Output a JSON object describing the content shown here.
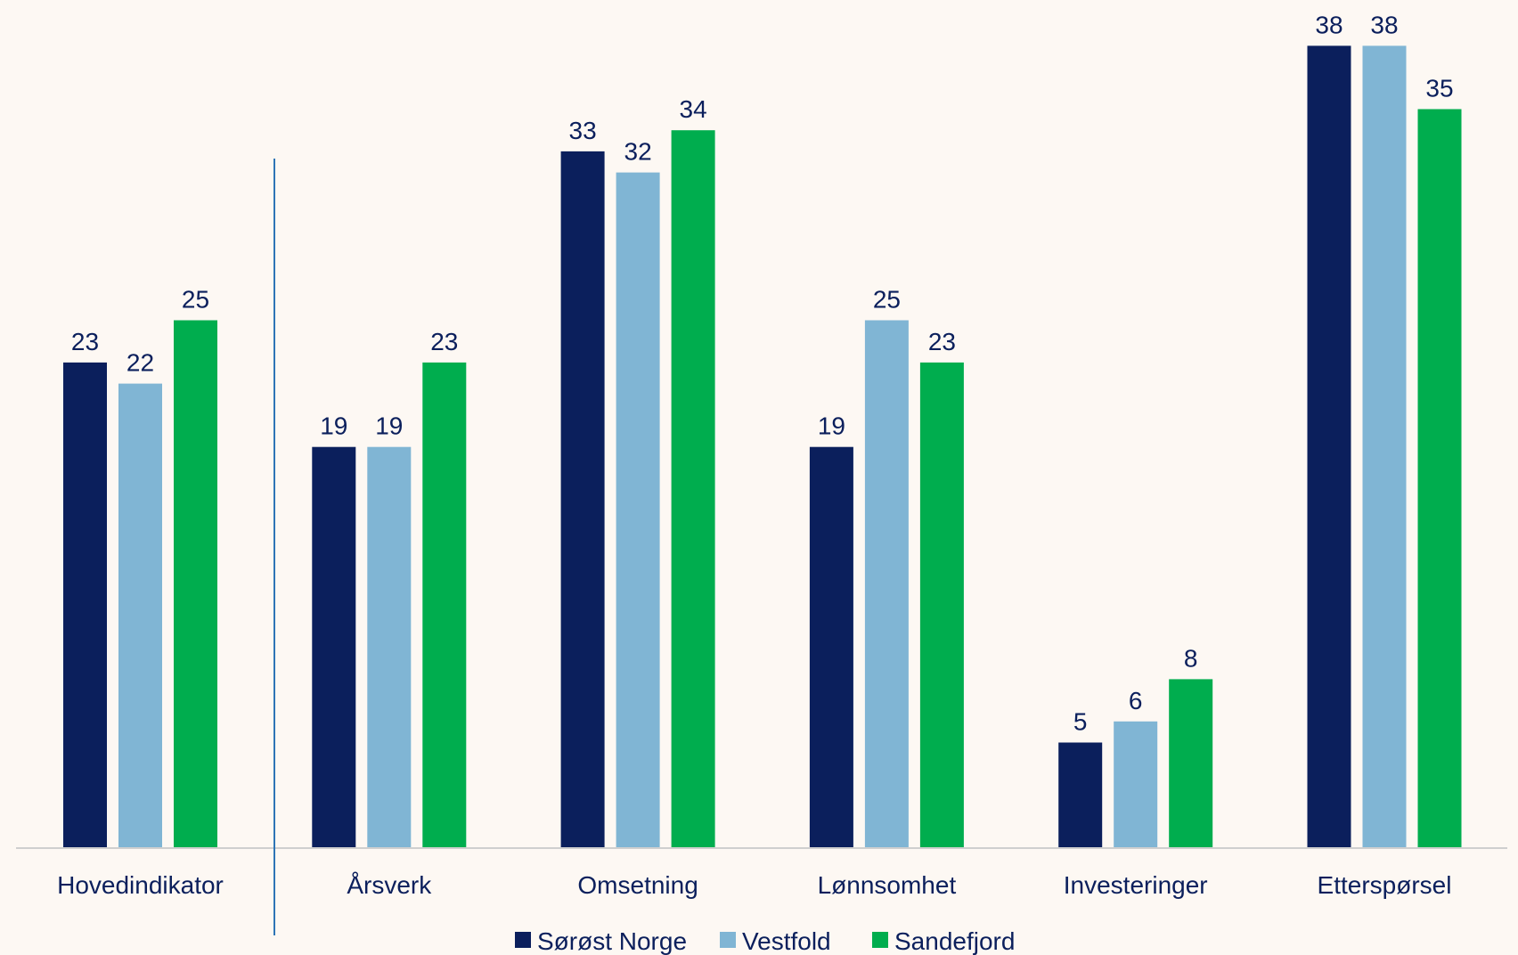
{
  "chart_data": {
    "type": "bar",
    "title": "",
    "xlabel": "",
    "ylabel": "",
    "ylim": [
      0,
      38
    ],
    "grid": false,
    "legend_position": "bottom",
    "categories": [
      "Hovedindikator",
      "Årsverk",
      "Omsetning",
      "Lønnsomhet",
      "Investeringer",
      "Etterspørsel"
    ],
    "series": [
      {
        "name": "Sørøst Norge",
        "color": "#0b1f5c",
        "values": [
          23,
          19,
          33,
          19,
          5,
          38
        ]
      },
      {
        "name": "Vestfold",
        "color": "#80b5d4",
        "values": [
          22,
          19,
          32,
          25,
          6,
          38
        ]
      },
      {
        "name": "Sandefjord",
        "color": "#00ad4e",
        "values": [
          25,
          23,
          34,
          23,
          8,
          35
        ]
      }
    ],
    "separator_after_category": 0
  }
}
